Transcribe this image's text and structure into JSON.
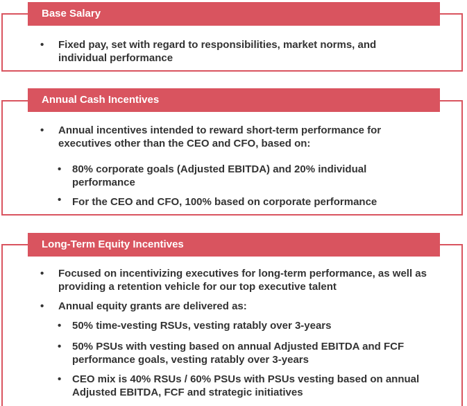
{
  "sections": [
    {
      "header": "Base Salary",
      "items": [
        "Fixed pay, set with regard to responsibilities, market norms, and individual performance"
      ]
    },
    {
      "header": "Annual Cash Incentives",
      "items": [
        "Annual incentives intended to reward short-term performance for executives other than the CEO and CFO, based on:"
      ],
      "subitems": [
        "80% corporate goals (Adjusted EBITDA) and 20% individual performance",
        "For the CEO and CFO, 100% based on corporate performance"
      ]
    },
    {
      "header": "Long-Term Equity Incentives",
      "items": [
        "Focused on incentivizing executives for long-term performance, as well as providing a retention vehicle for our top executive talent",
        "Annual equity grants are delivered as:"
      ],
      "subitems": [
        "50% time-vesting RSUs, vesting ratably over 3-years",
        "50% PSUs with vesting based on annual Adjusted EBITDA and FCF performance goals, vesting ratably over 3-years",
        "CEO mix is 40% RSUs / 60% PSUs with PSUs vesting based on annual Adjusted EBITDA, FCF and strategic initiatives"
      ]
    }
  ],
  "bullet_char": "•",
  "colors": {
    "accent": "#d9545f",
    "text": "#333333"
  }
}
